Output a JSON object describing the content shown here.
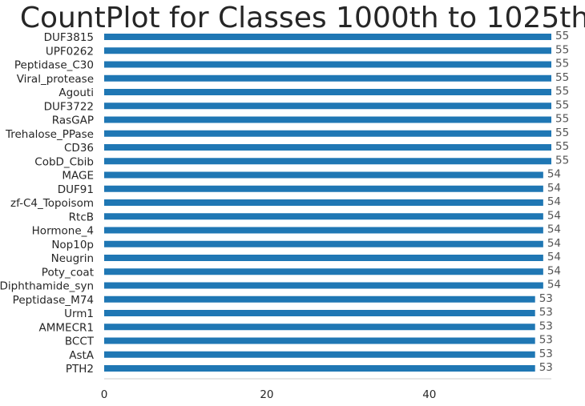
{
  "chart_data": {
    "type": "bar",
    "orientation": "horizontal",
    "title": "CountPlot for Classes 1000th to 1025th",
    "xlabel": "",
    "ylabel": "",
    "categories": [
      "DUF3815",
      "UPF0262",
      "Peptidase_C30",
      "Viral_protease",
      "Agouti",
      "DUF3722",
      "RasGAP",
      "Trehalose_PPase",
      "CD36",
      "CobD_Cbib",
      "MAGE",
      "DUF91",
      "zf-C4_Topoisom",
      "RtcB",
      "Hormone_4",
      "Nop10p",
      "Neugrin",
      "Poty_coat",
      "Diphthamide_syn",
      "Peptidase_M74",
      "Urm1",
      "AMMECR1",
      "BCCT",
      "AstA",
      "PTH2"
    ],
    "values": [
      55,
      55,
      55,
      55,
      55,
      55,
      55,
      55,
      55,
      55,
      54,
      54,
      54,
      54,
      54,
      54,
      54,
      54,
      54,
      53,
      53,
      53,
      53,
      53,
      53
    ],
    "xlim": [
      0,
      55
    ],
    "xticks": [
      0,
      20,
      40
    ],
    "grid": false,
    "bar_color": "#1f77b4"
  }
}
